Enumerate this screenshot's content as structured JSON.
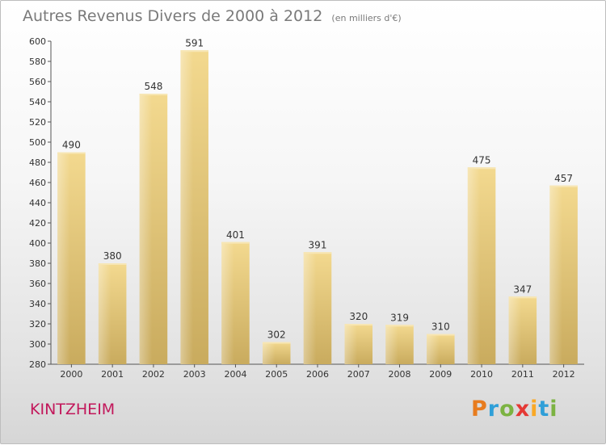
{
  "header": {
    "title": "Autres Revenus Divers de 2000 à 2012",
    "subtitle": "(en milliers d'€)"
  },
  "footer": {
    "place": "KINTZHEIM",
    "logo": {
      "letters": [
        "P",
        "r",
        "o",
        "x",
        "i",
        "t",
        "i"
      ],
      "colors": [
        "#e87c1e",
        "#2f9fd8",
        "#7cb342",
        "#e53935",
        "#f9a825",
        "#2f9fd8",
        "#7cb342"
      ]
    }
  },
  "chart_data": {
    "type": "bar",
    "title": "Autres Revenus Divers de 2000 à 2012",
    "subtitle": "(en milliers d'€)",
    "xlabel": "",
    "ylabel": "",
    "categories": [
      "2000",
      "2001",
      "2002",
      "2003",
      "2004",
      "2005",
      "2006",
      "2007",
      "2008",
      "2009",
      "2010",
      "2011",
      "2012"
    ],
    "values": [
      490,
      380,
      548,
      591,
      401,
      302,
      391,
      320,
      319,
      310,
      475,
      347,
      457
    ],
    "ylim": [
      280,
      600
    ],
    "yticks": [
      280,
      300,
      320,
      340,
      360,
      380,
      400,
      420,
      440,
      460,
      480,
      500,
      520,
      540,
      560,
      580,
      600
    ],
    "grid": false,
    "bar_color": "#e8c97c"
  }
}
